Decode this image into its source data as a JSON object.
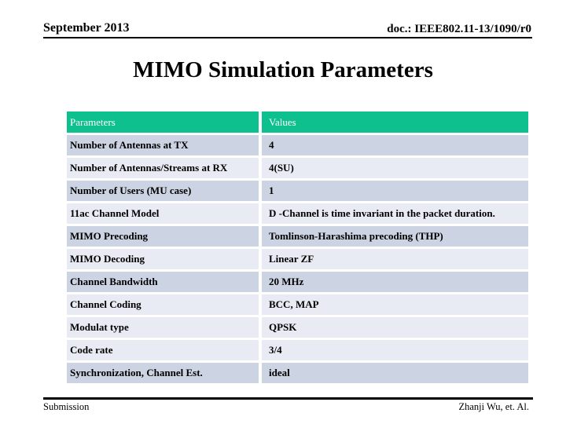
{
  "header": {
    "left": "September 2013",
    "right": "doc.: IEEE802.11-13/1090/r0"
  },
  "title": "MIMO Simulation Parameters",
  "table": {
    "columns": [
      "Parameters",
      "Values"
    ],
    "rows": [
      {
        "parameter": "Number of Antennas at TX",
        "value": "4",
        "shade": "dark"
      },
      {
        "parameter": "Number of Antennas/Streams at RX",
        "value": "4(SU)",
        "shade": "light"
      },
      {
        "parameter": "Number of Users (MU case)",
        "value": "1",
        "shade": "dark"
      },
      {
        "parameter": "11ac Channel Model",
        "value": "D -Channel is time invariant in the packet duration.",
        "shade": "light"
      },
      {
        "parameter": "MIMO Precoding",
        "value": "Tomlinson-Harashima precoding (THP)",
        "shade": "dark"
      },
      {
        "parameter": "MIMO Decoding",
        "value": "Linear ZF",
        "shade": "light"
      },
      {
        "parameter": "Channel Bandwidth",
        "value": "20 MHz",
        "shade": "dark"
      },
      {
        "parameter": "Channel Coding",
        "value": "BCC, MAP",
        "shade": "light"
      },
      {
        "parameter": "Modulat type",
        "value": "QPSK",
        "shade": "light"
      },
      {
        "parameter": "Code rate",
        "value": "3/4",
        "shade": "light"
      },
      {
        "parameter": "Synchronization, Channel Est.",
        "value": "ideal",
        "shade": "dark"
      }
    ]
  },
  "footer": {
    "left": "Submission",
    "right": "Zhanji Wu, et. Al."
  },
  "colors": {
    "table_header_bg": "#0DC08D",
    "row_dark": "#CCD3E3",
    "row_light": "#E9EBF4",
    "rule": "#000000",
    "header_text": "#FFFFFF",
    "body_text": "#000000"
  }
}
